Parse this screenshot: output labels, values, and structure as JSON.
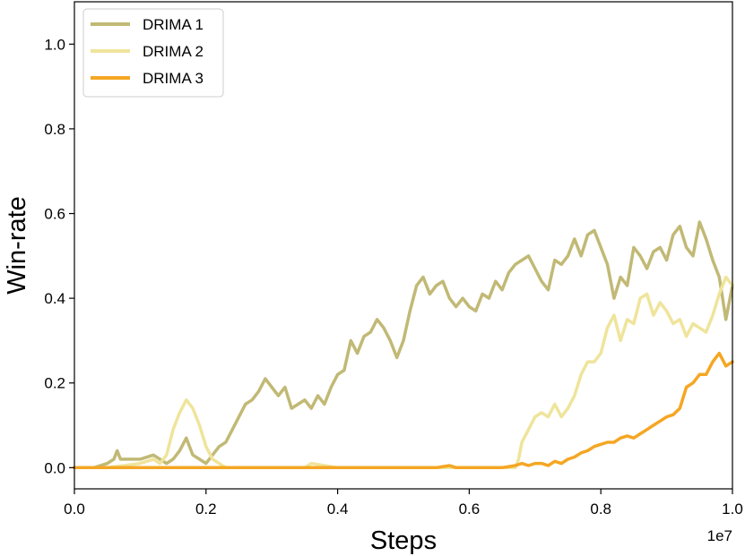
{
  "chart_data": {
    "type": "line",
    "title": "",
    "xlabel": "Steps",
    "ylabel": "Win-rate",
    "x_offset_label": "1e7",
    "xlim": [
      0,
      1.0
    ],
    "ylim": [
      -0.05,
      1.1
    ],
    "x_ticks": [
      0.0,
      0.2,
      0.4,
      0.6,
      0.8,
      1.0
    ],
    "x_tick_labels": [
      "0.0",
      "0.2",
      "0.4",
      "0.6",
      "0.8",
      "1.0"
    ],
    "y_ticks": [
      0.0,
      0.2,
      0.4,
      0.6,
      0.8,
      1.0
    ],
    "y_tick_labels": [
      "0.0",
      "0.2",
      "0.4",
      "0.6",
      "0.8",
      "1.0"
    ],
    "grid": false,
    "legend_position": "top-left",
    "series": [
      {
        "name": "DRIMA 1",
        "color": "#c1b975",
        "x": [
          0.0,
          0.03,
          0.05,
          0.06,
          0.065,
          0.07,
          0.08,
          0.1,
          0.12,
          0.14,
          0.15,
          0.16,
          0.17,
          0.175,
          0.18,
          0.19,
          0.2,
          0.21,
          0.22,
          0.23,
          0.24,
          0.25,
          0.26,
          0.27,
          0.28,
          0.29,
          0.3,
          0.31,
          0.32,
          0.33,
          0.34,
          0.35,
          0.36,
          0.37,
          0.38,
          0.39,
          0.4,
          0.41,
          0.42,
          0.43,
          0.44,
          0.45,
          0.46,
          0.47,
          0.48,
          0.49,
          0.5,
          0.51,
          0.52,
          0.53,
          0.54,
          0.55,
          0.56,
          0.57,
          0.58,
          0.59,
          0.6,
          0.61,
          0.62,
          0.63,
          0.64,
          0.65,
          0.66,
          0.67,
          0.68,
          0.69,
          0.7,
          0.71,
          0.72,
          0.73,
          0.74,
          0.75,
          0.76,
          0.77,
          0.78,
          0.79,
          0.8,
          0.81,
          0.82,
          0.83,
          0.84,
          0.85,
          0.86,
          0.87,
          0.88,
          0.89,
          0.9,
          0.91,
          0.92,
          0.93,
          0.94,
          0.95,
          0.96,
          0.97,
          0.98,
          0.99,
          1.0
        ],
        "values": [
          0.0,
          0.0,
          0.01,
          0.02,
          0.04,
          0.02,
          0.02,
          0.02,
          0.03,
          0.01,
          0.02,
          0.04,
          0.07,
          0.05,
          0.03,
          0.02,
          0.01,
          0.03,
          0.05,
          0.06,
          0.09,
          0.12,
          0.15,
          0.16,
          0.18,
          0.21,
          0.19,
          0.17,
          0.19,
          0.14,
          0.15,
          0.16,
          0.14,
          0.17,
          0.15,
          0.19,
          0.22,
          0.23,
          0.3,
          0.27,
          0.31,
          0.32,
          0.35,
          0.33,
          0.3,
          0.26,
          0.3,
          0.37,
          0.43,
          0.45,
          0.41,
          0.43,
          0.44,
          0.4,
          0.38,
          0.4,
          0.38,
          0.37,
          0.41,
          0.4,
          0.44,
          0.42,
          0.46,
          0.48,
          0.49,
          0.5,
          0.47,
          0.44,
          0.42,
          0.49,
          0.48,
          0.5,
          0.54,
          0.5,
          0.55,
          0.56,
          0.52,
          0.48,
          0.4,
          0.45,
          0.43,
          0.52,
          0.5,
          0.47,
          0.51,
          0.52,
          0.49,
          0.55,
          0.57,
          0.52,
          0.5,
          0.58,
          0.54,
          0.49,
          0.45,
          0.35,
          0.43
        ]
      },
      {
        "name": "DRIMA 2",
        "color": "#efe49b",
        "x": [
          0.0,
          0.05,
          0.1,
          0.12,
          0.13,
          0.14,
          0.15,
          0.16,
          0.17,
          0.18,
          0.19,
          0.2,
          0.21,
          0.22,
          0.23,
          0.25,
          0.3,
          0.35,
          0.36,
          0.4,
          0.5,
          0.6,
          0.65,
          0.67,
          0.675,
          0.68,
          0.69,
          0.7,
          0.71,
          0.72,
          0.73,
          0.74,
          0.75,
          0.76,
          0.77,
          0.78,
          0.79,
          0.8,
          0.81,
          0.82,
          0.83,
          0.84,
          0.85,
          0.86,
          0.87,
          0.88,
          0.89,
          0.9,
          0.91,
          0.92,
          0.93,
          0.94,
          0.95,
          0.96,
          0.97,
          0.98,
          0.99,
          1.0
        ],
        "values": [
          0.0,
          0.0,
          0.01,
          0.02,
          0.01,
          0.03,
          0.09,
          0.13,
          0.16,
          0.14,
          0.1,
          0.05,
          0.02,
          0.01,
          0.0,
          0.0,
          0.0,
          0.0,
          0.01,
          0.0,
          0.0,
          0.0,
          0.0,
          0.0,
          0.02,
          0.06,
          0.09,
          0.12,
          0.13,
          0.12,
          0.15,
          0.12,
          0.14,
          0.17,
          0.22,
          0.25,
          0.25,
          0.27,
          0.33,
          0.36,
          0.3,
          0.35,
          0.34,
          0.4,
          0.41,
          0.36,
          0.39,
          0.37,
          0.34,
          0.35,
          0.31,
          0.34,
          0.33,
          0.32,
          0.36,
          0.41,
          0.45,
          0.43
        ]
      },
      {
        "name": "DRIMA 3",
        "color": "#f5a623",
        "x": [
          0.0,
          0.2,
          0.4,
          0.55,
          0.57,
          0.58,
          0.6,
          0.65,
          0.67,
          0.68,
          0.69,
          0.7,
          0.71,
          0.72,
          0.73,
          0.74,
          0.75,
          0.76,
          0.77,
          0.78,
          0.79,
          0.8,
          0.81,
          0.82,
          0.83,
          0.84,
          0.85,
          0.86,
          0.87,
          0.88,
          0.89,
          0.9,
          0.91,
          0.92,
          0.93,
          0.94,
          0.95,
          0.96,
          0.97,
          0.98,
          0.99,
          1.0
        ],
        "values": [
          0.0,
          0.0,
          0.0,
          0.0,
          0.005,
          0.0,
          0.0,
          0.0,
          0.005,
          0.01,
          0.005,
          0.01,
          0.01,
          0.005,
          0.015,
          0.01,
          0.02,
          0.025,
          0.035,
          0.04,
          0.05,
          0.055,
          0.06,
          0.06,
          0.07,
          0.075,
          0.07,
          0.08,
          0.09,
          0.1,
          0.11,
          0.12,
          0.125,
          0.14,
          0.19,
          0.2,
          0.22,
          0.22,
          0.25,
          0.27,
          0.24,
          0.25
        ]
      }
    ]
  }
}
